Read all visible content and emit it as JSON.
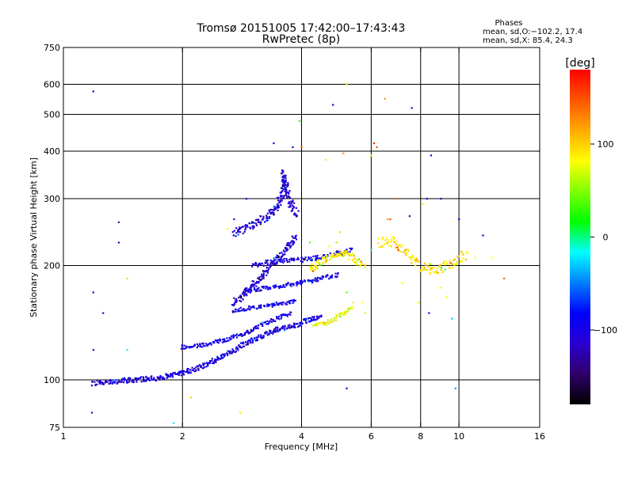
{
  "header": {
    "title_line1": "Tromsø 20151005 17:42:00–17:43:43",
    "title_line2": "RwPretec (8p)",
    "phase_box": {
      "heading": "Phases",
      "line_o": "mean, sd,O:−102.2, 17.4",
      "line_x": "mean, sd,X:  85.4, 24.3"
    }
  },
  "colorbar": {
    "label": "[deg]",
    "range": [
      -180,
      180
    ],
    "ticks": [
      {
        "value": 100,
        "label": "100"
      },
      {
        "value": 0,
        "label": "0"
      },
      {
        "value": -100,
        "label": "−100"
      }
    ],
    "stops": [
      "#000000",
      "#30006a",
      "#2a00d0",
      "#0000ff",
      "#007fff",
      "#00ffff",
      "#00ff00",
      "#7fff00",
      "#ffff00",
      "#ffaa00",
      "#ff5500",
      "#ff0000"
    ]
  },
  "chart_data": {
    "type": "scatter",
    "title": "Tromsø 20151005 17:42:00–17:43:43",
    "subtitle": "RwPretec (8p)",
    "xlabel": "Frequency [MHz]",
    "ylabel": "Stationary phase Virtual Height [km]",
    "x_scale": "log",
    "y_scale": "log",
    "xlim": [
      1,
      16
    ],
    "ylim": [
      75,
      750
    ],
    "x_ticks": [
      {
        "value": 1,
        "label": "1"
      },
      {
        "value": 2,
        "label": "2"
      },
      {
        "value": 4,
        "label": "4"
      },
      {
        "value": 6,
        "label": "6"
      },
      {
        "value": 8,
        "label": "8"
      },
      {
        "value": 10,
        "label": "10"
      },
      {
        "value": 16,
        "label": "16"
      }
    ],
    "y_ticks": [
      {
        "value": 75,
        "label": "75"
      },
      {
        "value": 100,
        "label": "100"
      },
      {
        "value": 200,
        "label": "200"
      },
      {
        "value": 300,
        "label": "300"
      },
      {
        "value": 400,
        "label": "400"
      },
      {
        "value": 500,
        "label": "500"
      },
      {
        "value": 600,
        "label": "600"
      },
      {
        "value": 750,
        "label": "750"
      }
    ],
    "x_grid": [
      2,
      4,
      6,
      8,
      10
    ],
    "y_grid": [
      100,
      200,
      300,
      400,
      500,
      600
    ],
    "grid": true,
    "color_by": "phase [deg]",
    "traces": [
      {
        "name": "O-lower",
        "phase": -105,
        "jitter": 0.015,
        "n": 4,
        "points": [
          [
            1.19,
            98
          ],
          [
            1.3,
            99
          ],
          [
            1.5,
            100
          ],
          [
            1.7,
            101
          ],
          [
            1.9,
            103
          ],
          [
            2.1,
            106
          ],
          [
            2.3,
            110
          ],
          [
            2.5,
            115
          ],
          [
            2.7,
            120
          ],
          [
            2.9,
            125
          ],
          [
            3.1,
            129
          ],
          [
            3.3,
            133
          ],
          [
            3.5,
            136
          ],
          [
            3.7,
            138
          ],
          [
            3.9,
            140
          ],
          [
            4.1,
            143
          ],
          [
            4.3,
            145
          ],
          [
            4.5,
            148
          ]
        ]
      },
      {
        "name": "O-mid",
        "phase": -100,
        "jitter": 0.012,
        "n": 3,
        "points": [
          [
            2.0,
            122
          ],
          [
            2.3,
            124
          ],
          [
            2.6,
            128
          ],
          [
            2.9,
            133
          ],
          [
            3.2,
            140
          ],
          [
            3.5,
            146
          ],
          [
            3.8,
            150
          ]
        ]
      },
      {
        "name": "O-cusp",
        "phase": -110,
        "jitter": 0.02,
        "n": 4,
        "points": [
          [
            2.7,
            160
          ],
          [
            2.9,
            170
          ],
          [
            3.1,
            182
          ],
          [
            3.3,
            196
          ],
          [
            3.5,
            210
          ],
          [
            3.7,
            225
          ],
          [
            3.9,
            240
          ]
        ]
      },
      {
        "name": "O-upper",
        "phase": -105,
        "jitter": 0.015,
        "n": 3,
        "points": [
          [
            3.0,
            200
          ],
          [
            3.4,
            205
          ],
          [
            3.8,
            206
          ],
          [
            4.2,
            208
          ],
          [
            4.6,
            212
          ],
          [
            5.0,
            216
          ],
          [
            5.4,
            220
          ]
        ]
      },
      {
        "name": "O-band-175",
        "phase": -100,
        "jitter": 0.012,
        "n": 3,
        "points": [
          [
            2.9,
            172
          ],
          [
            3.3,
            175
          ],
          [
            3.7,
            178
          ],
          [
            4.2,
            182
          ],
          [
            4.6,
            186
          ],
          [
            5.0,
            190
          ]
        ]
      },
      {
        "name": "O-band-155",
        "phase": -95,
        "jitter": 0.012,
        "n": 3,
        "points": [
          [
            2.7,
            152
          ],
          [
            3.0,
            155
          ],
          [
            3.4,
            158
          ],
          [
            3.7,
            160
          ],
          [
            3.9,
            162
          ]
        ]
      },
      {
        "name": "O-spread-high",
        "phase": -110,
        "jitter": 0.025,
        "n": 4,
        "points": [
          [
            2.7,
            245
          ],
          [
            3.0,
            255
          ],
          [
            3.3,
            270
          ],
          [
            3.5,
            290
          ],
          [
            3.6,
            320
          ],
          [
            3.6,
            350
          ],
          [
            3.7,
            300
          ],
          [
            3.9,
            270
          ]
        ]
      },
      {
        "name": "X-trace",
        "phase": 85,
        "jitter": 0.02,
        "n": 4,
        "points": [
          [
            4.2,
            195
          ],
          [
            4.5,
            205
          ],
          [
            4.8,
            212
          ],
          [
            5.2,
            215
          ],
          [
            5.5,
            205
          ],
          [
            5.8,
            200
          ]
        ]
      },
      {
        "name": "X-lower",
        "phase": 80,
        "jitter": 0.015,
        "n": 3,
        "points": [
          [
            4.3,
            140
          ],
          [
            4.7,
            142
          ],
          [
            5.1,
            150
          ],
          [
            5.4,
            155
          ]
        ]
      },
      {
        "name": "X-far",
        "phase": 95,
        "jitter": 0.03,
        "n": 3,
        "points": [
          [
            6.3,
            230
          ],
          [
            6.8,
            232
          ],
          [
            7.4,
            215
          ],
          [
            8.0,
            200
          ],
          [
            8.6,
            195
          ],
          [
            9.4,
            200
          ],
          [
            10.5,
            215
          ]
        ]
      }
    ],
    "scatter_points": [
      [
        1.19,
        575,
        -105
      ],
      [
        1.19,
        170,
        -105
      ],
      [
        1.19,
        120,
        -105
      ],
      [
        1.18,
        82,
        -100
      ],
      [
        1.38,
        260,
        -110
      ],
      [
        1.38,
        230,
        -110
      ],
      [
        1.45,
        185,
        60
      ],
      [
        1.45,
        120,
        -20
      ],
      [
        1.26,
        150,
        -100
      ],
      [
        4.8,
        530,
        -105
      ],
      [
        5.2,
        600,
        70
      ],
      [
        6.5,
        550,
        120
      ],
      [
        7.6,
        520,
        -105
      ],
      [
        8.5,
        390,
        -105
      ],
      [
        4.6,
        380,
        90
      ],
      [
        6.0,
        390,
        80
      ],
      [
        6.2,
        410,
        150
      ],
      [
        6.1,
        420,
        160
      ],
      [
        5.1,
        395,
        120
      ],
      [
        3.95,
        480,
        30
      ],
      [
        4.0,
        410,
        150
      ],
      [
        3.4,
        420,
        -105
      ],
      [
        3.8,
        410,
        -105
      ],
      [
        5.2,
        95,
        -105
      ],
      [
        9.8,
        95,
        -40
      ],
      [
        13.0,
        185,
        140
      ],
      [
        11.5,
        240,
        -105
      ],
      [
        10.0,
        265,
        -105
      ],
      [
        9.0,
        300,
        -105
      ],
      [
        6.9,
        300,
        140
      ],
      [
        8.1,
        290,
        80
      ],
      [
        8.3,
        300,
        -100
      ],
      [
        7.2,
        180,
        80
      ],
      [
        9.0,
        175,
        80
      ],
      [
        9.3,
        165,
        80
      ],
      [
        7.9,
        160,
        70
      ],
      [
        9.6,
        145,
        -30
      ],
      [
        8.4,
        150,
        -100
      ],
      [
        5.4,
        160,
        90
      ],
      [
        5.2,
        170,
        40
      ],
      [
        4.7,
        225,
        80
      ],
      [
        5.0,
        245,
        60
      ],
      [
        6.6,
        265,
        120
      ],
      [
        6.7,
        265,
        150
      ],
      [
        12.1,
        210,
        80
      ],
      [
        11.0,
        210,
        80
      ],
      [
        2.1,
        90,
        100
      ],
      [
        1.7,
        75,
        130
      ],
      [
        1.9,
        77,
        -20
      ],
      [
        2.8,
        82,
        90
      ],
      [
        2.6,
        250,
        80
      ],
      [
        2.7,
        265,
        -105
      ],
      [
        2.9,
        300,
        -105
      ],
      [
        4.2,
        230,
        40
      ],
      [
        4.9,
        230,
        60
      ],
      [
        5.7,
        160,
        80
      ],
      [
        7.5,
        270,
        -105
      ],
      [
        6.0,
        220,
        0
      ],
      [
        5.8,
        150,
        70
      ]
    ]
  }
}
